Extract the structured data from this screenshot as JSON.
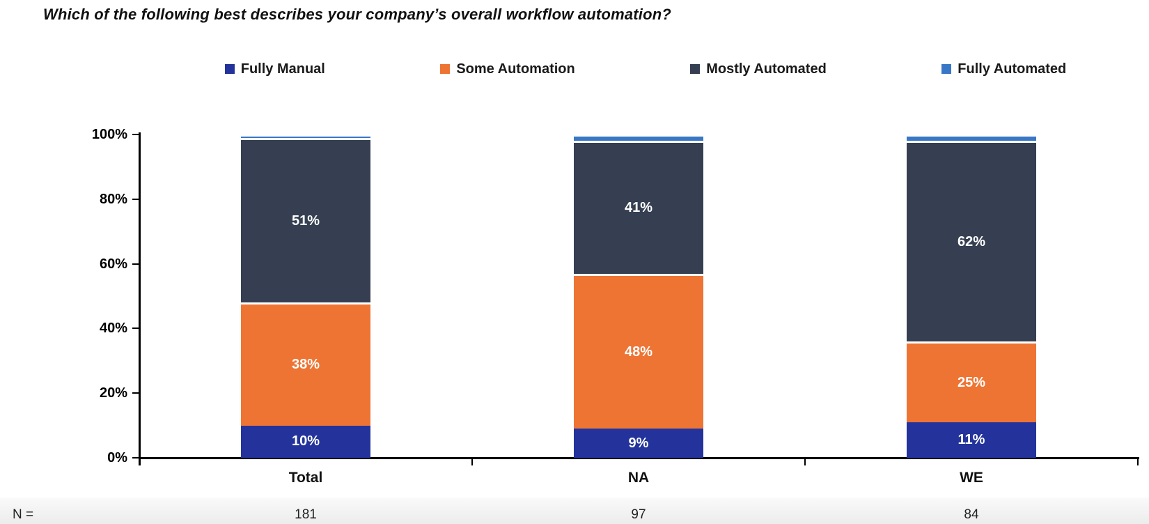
{
  "title": "Which of the following best describes your company’s overall workflow automation?",
  "chart_data": {
    "type": "bar",
    "stacked": true,
    "unit": "%",
    "title": "Which of the following best describes your company’s overall workflow automation?",
    "categories": [
      "Total",
      "NA",
      "WE"
    ],
    "series": [
      {
        "name": "Fully Manual",
        "color": "#23339B",
        "values": [
          10,
          9,
          11
        ],
        "labels": [
          "10%",
          "9%",
          "11%"
        ]
      },
      {
        "name": "Some Automation",
        "color": "#EE7434",
        "values": [
          38,
          48,
          25
        ],
        "labels": [
          "38%",
          "48%",
          "25%"
        ]
      },
      {
        "name": "Mostly Automated",
        "color": "#353F51",
        "values": [
          51,
          41,
          62
        ],
        "labels": [
          "51%",
          "41%",
          "62%"
        ]
      },
      {
        "name": "Fully Automated",
        "color": "#3877C5",
        "values": [
          1,
          2,
          2
        ],
        "labels": [
          null,
          null,
          null
        ]
      }
    ],
    "y_axis": {
      "min": 0,
      "max": 100,
      "ticks": [
        "0%",
        "20%",
        "40%",
        "60%",
        "80%",
        "100%"
      ]
    },
    "legend_position": "top",
    "grid": false,
    "axis_color": "#000000",
    "bar_label_color": "#ffffff"
  },
  "n_row": {
    "label": "N =",
    "values": [
      "181",
      "97",
      "84"
    ]
  }
}
